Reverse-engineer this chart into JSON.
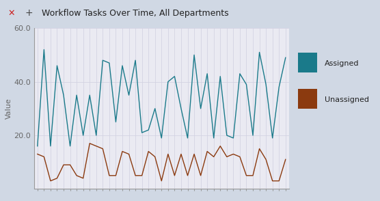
{
  "title": "Workflow Tasks Over Time, All Departments",
  "ylabel": "Value",
  "ylim": [
    0,
    60
  ],
  "yticks": [
    20.0,
    40.0,
    60.0
  ],
  "assigned_color": "#1a7a8a",
  "unassigned_color": "#8B3A0F",
  "legend_assigned": "Assigned",
  "legend_unassigned": "Unassigned",
  "header_bg": "#c8d0da",
  "plot_bg": "#eaeaf2",
  "fig_bg": "#d0d8e4",
  "assigned": [
    16,
    52,
    16,
    46,
    35,
    16,
    35,
    20,
    35,
    20,
    48,
    47,
    25,
    46,
    35,
    48,
    21,
    22,
    30,
    19,
    40,
    42,
    30,
    19,
    50,
    30,
    43,
    19,
    42,
    20,
    19,
    43,
    39,
    20,
    51,
    39,
    19,
    38,
    49
  ],
  "unassigned": [
    13,
    12,
    3,
    4,
    9,
    9,
    5,
    4,
    17,
    16,
    15,
    5,
    5,
    14,
    13,
    5,
    5,
    14,
    12,
    3,
    13,
    5,
    13,
    5,
    13,
    5,
    14,
    12,
    16,
    12,
    13,
    12,
    5,
    5,
    15,
    11,
    3,
    3,
    11
  ],
  "title_fontsize": 9,
  "axis_label_fontsize": 8,
  "tick_fontsize": 8,
  "legend_fontsize": 8
}
